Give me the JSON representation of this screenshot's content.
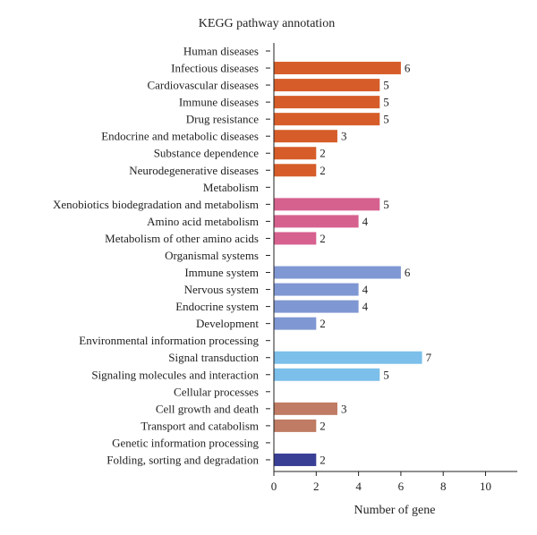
{
  "chart_data": {
    "type": "bar",
    "orientation": "horizontal",
    "title": "KEGG pathway annotation",
    "xlabel": "Number of gene",
    "ylabel": "",
    "xlim": [
      0,
      11.5
    ],
    "xticks": [
      0,
      2,
      4,
      6,
      8,
      10
    ],
    "grid": false,
    "legend": "none",
    "categories": [
      "Human diseases",
      "Infectious diseases",
      "Cardiovascular diseases",
      "Immune diseases",
      "Drug resistance",
      "Endocrine and metabolic diseases",
      "Substance dependence",
      "Neurodegenerative diseases",
      "Metabolism",
      "Xenobiotics biodegradation and metabolism",
      "Amino acid metabolism",
      "Metabolism of other amino acids",
      "Organismal systems",
      "Immune system",
      "Nervous system",
      "Endocrine system",
      "Development",
      "Environmental information processing",
      "Signal transduction",
      "Signaling molecules and interaction",
      "Cellular processes",
      "Cell growth and death",
      "Transport and catabolism",
      "Genetic information processing",
      "Folding, sorting and degradation"
    ],
    "values": [
      null,
      6,
      5,
      5,
      5,
      3,
      2,
      2,
      null,
      5,
      4,
      2,
      null,
      6,
      4,
      4,
      2,
      null,
      7,
      5,
      null,
      3,
      2,
      null,
      2
    ],
    "colors": [
      "#d65d29",
      "#d65d29",
      "#d65d29",
      "#d65d29",
      "#d65d29",
      "#d65d29",
      "#d65d29",
      "#d65d29",
      "#d6618f",
      "#d6618f",
      "#d6618f",
      "#d6618f",
      "#7f97d2",
      "#7f97d2",
      "#7f97d2",
      "#7f97d2",
      "#7f97d2",
      "#7bbfea",
      "#7bbfea",
      "#7bbfea",
      "#bf7b63",
      "#bf7b63",
      "#bf7b63",
      "#3a3f96",
      "#3a3f96"
    ]
  }
}
